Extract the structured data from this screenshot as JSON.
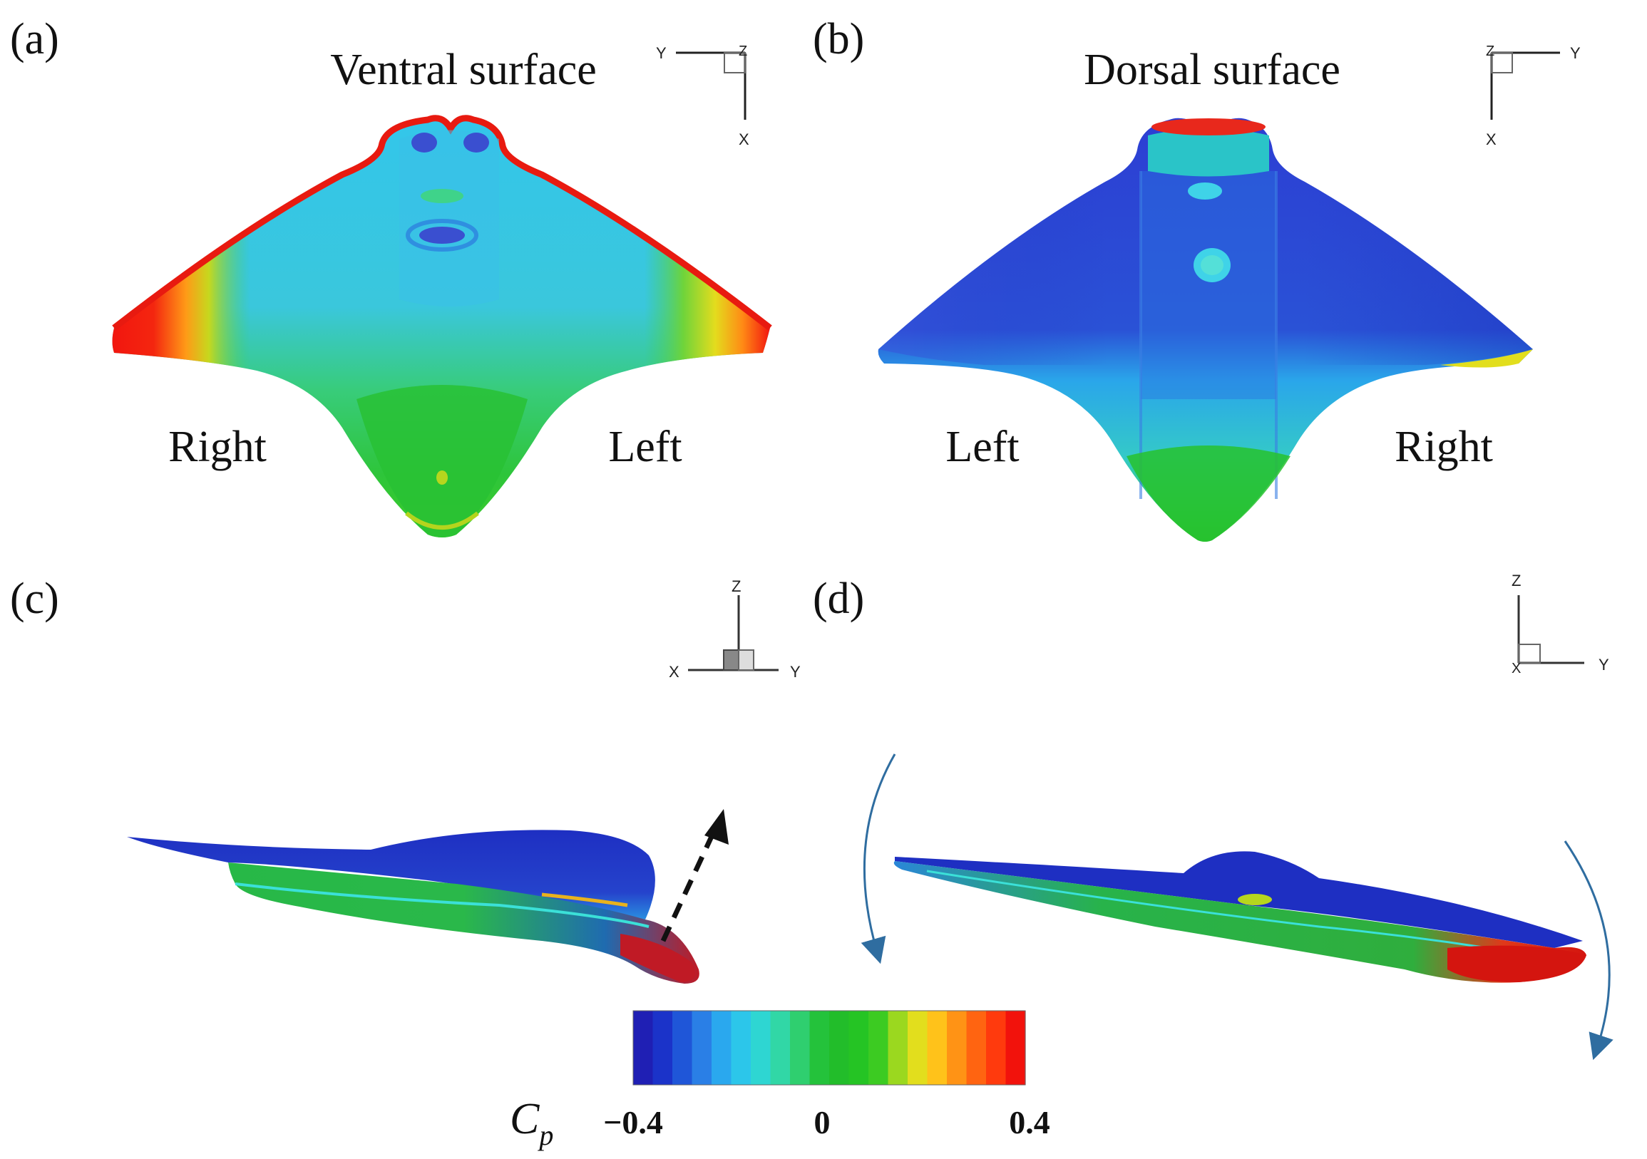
{
  "panels": {
    "a": {
      "label": "(a)",
      "title": "Ventral surface",
      "side_left": "Right",
      "side_right": "Left",
      "axes": {
        "h": "Y",
        "corner": "Z",
        "v": "X"
      }
    },
    "b": {
      "label": "(b)",
      "title": "Dorsal surface",
      "side_left": "Left",
      "side_right": "Right",
      "axes": {
        "corner": "Z",
        "h": "Y",
        "v": "X"
      }
    },
    "c": {
      "label": "(c)",
      "axes": {
        "up": "Z",
        "left": "X",
        "right": "Y"
      }
    },
    "d": {
      "label": "(d)",
      "axes": {
        "up": "Z",
        "origin": "X",
        "right": "Y"
      }
    }
  },
  "colorbar": {
    "symbol": "C",
    "subscript": "p",
    "tick_min": "−0.4",
    "tick_mid": "0",
    "tick_max": "0.4",
    "colors": [
      "#1f1fb4",
      "#1b33c9",
      "#1f56d8",
      "#2a7fe6",
      "#2aa8ee",
      "#2cc6ea",
      "#2ed6d2",
      "#31d7a6",
      "#2fcf6f",
      "#24c23b",
      "#22bd2a",
      "#25c424",
      "#3ccb22",
      "#9bd81f",
      "#e2de1d",
      "#ffc21a",
      "#ff9315",
      "#ff6411",
      "#ff3a0d",
      "#f2120c"
    ]
  }
}
